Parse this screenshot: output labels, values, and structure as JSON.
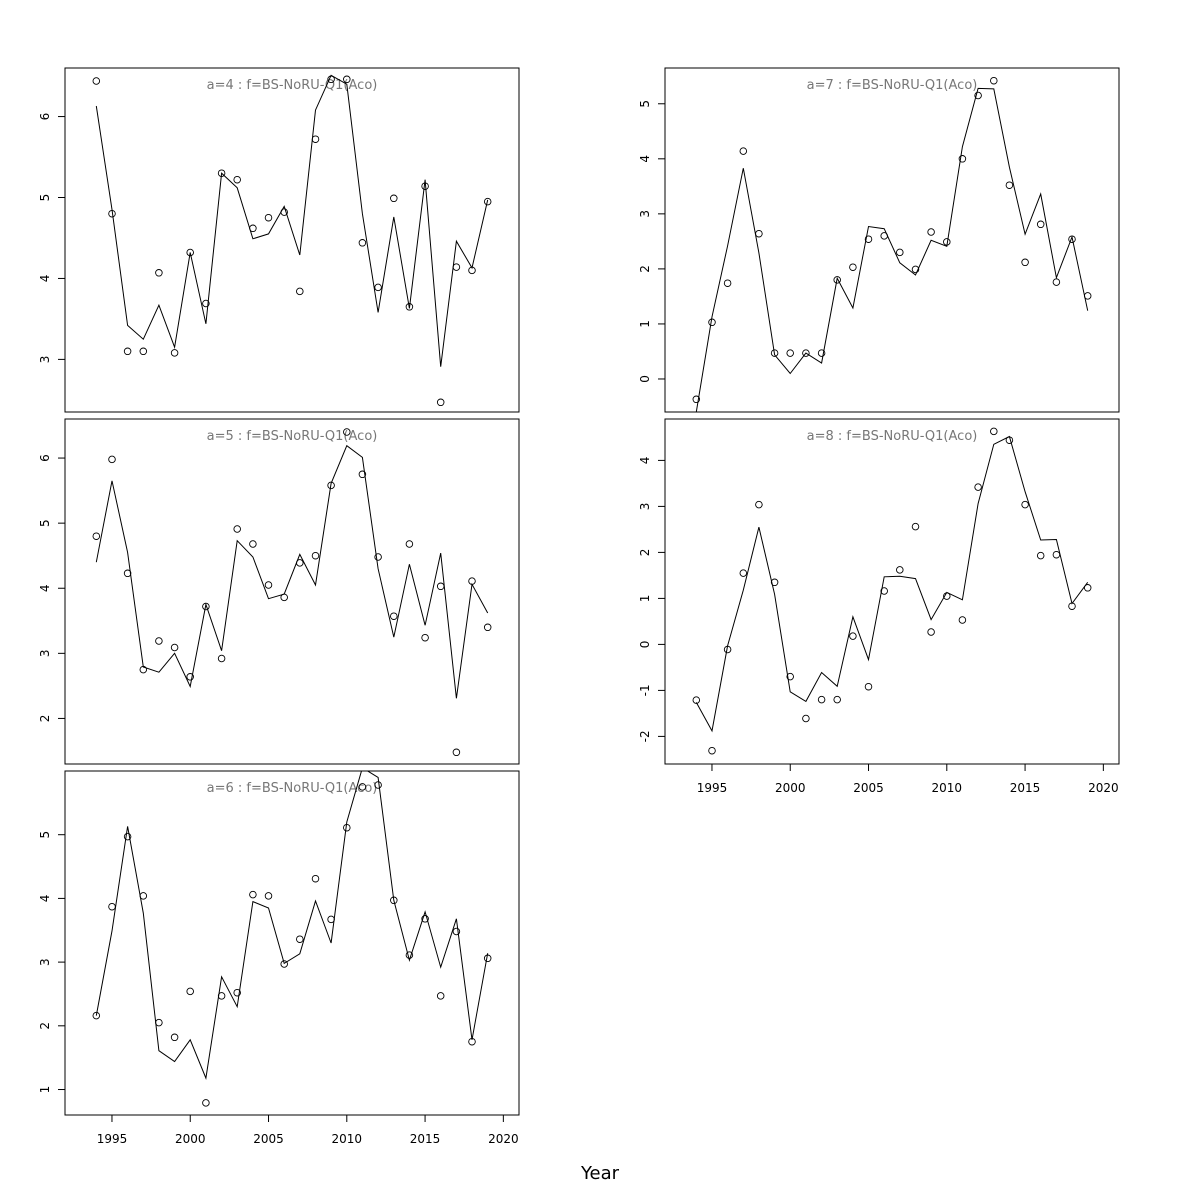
{
  "chart_data": {
    "type": "scatter",
    "xlabel": "Year",
    "xlim": [
      1992,
      2021
    ],
    "xticks": [
      1995,
      2000,
      2005,
      2010,
      2015,
      2020
    ],
    "panels": [
      {
        "title": "a=4  :  f=BS-NoRU-Q1(Aco)",
        "ylim": [
          2.35,
          6.6
        ],
        "yticks": [
          3,
          4,
          5,
          6
        ],
        "show_x_axis": false,
        "series": [
          {
            "type": "scatter",
            "x": [
              1994,
              1995,
              1996,
              1997,
              1998,
              1999,
              2000,
              2001,
              2002,
              2003,
              2004,
              2005,
              2006,
              2007,
              2008,
              2009,
              2010,
              2011,
              2012,
              2013,
              2014,
              2015,
              2016,
              2017,
              2018,
              2019
            ],
            "values": [
              6.44,
              4.8,
              3.1,
              3.1,
              4.07,
              3.08,
              4.32,
              3.69,
              5.3,
              5.22,
              4.62,
              4.75,
              4.82,
              3.84,
              5.72,
              6.46,
              6.46,
              4.44,
              3.89,
              4.99,
              3.65,
              5.14,
              2.47,
              4.14,
              4.1,
              4.95
            ]
          },
          {
            "type": "line",
            "x": [
              1994,
              1995,
              1996,
              1997,
              1998,
              1999,
              2000,
              2001,
              2002,
              2003,
              2004,
              2005,
              2006,
              2007,
              2008,
              2009,
              2010,
              2011,
              2012,
              2013,
              2014,
              2015,
              2016,
              2017,
              2018,
              2019
            ],
            "values": [
              6.13,
              4.85,
              3.42,
              3.25,
              3.67,
              3.15,
              4.32,
              3.44,
              5.3,
              5.12,
              4.49,
              4.55,
              4.89,
              4.29,
              6.08,
              6.51,
              6.4,
              4.8,
              3.58,
              4.76,
              3.63,
              5.22,
              2.91,
              4.46,
              4.13,
              4.97
            ]
          }
        ]
      },
      {
        "title": "a=7  :  f=BS-NoRU-Q1(Aco)",
        "ylim": [
          -0.6,
          5.65
        ],
        "yticks": [
          0,
          1,
          2,
          3,
          4,
          5
        ],
        "show_x_axis": false,
        "series": [
          {
            "type": "scatter",
            "x": [
              1994,
              1995,
              1996,
              1997,
              1998,
              1999,
              2000,
              2001,
              2002,
              2003,
              2004,
              2005,
              2006,
              2007,
              2008,
              2009,
              2010,
              2011,
              2012,
              2013,
              2014,
              2015,
              2016,
              2017,
              2018,
              2019
            ],
            "values": [
              -0.37,
              1.03,
              1.74,
              4.14,
              2.64,
              0.47,
              0.47,
              0.47,
              0.47,
              1.8,
              2.03,
              2.54,
              2.6,
              2.3,
              1.99,
              2.67,
              2.49,
              4.0,
              5.15,
              5.42,
              3.52,
              2.12,
              2.81,
              1.76,
              2.54,
              1.51
            ]
          },
          {
            "type": "line",
            "x": [
              1994,
              1995,
              1996,
              1997,
              1998,
              1999,
              2000,
              2001,
              2002,
              2003,
              2004,
              2005,
              2006,
              2007,
              2008,
              2009,
              2010,
              2011,
              2012,
              2013,
              2014,
              2015,
              2016,
              2017,
              2018,
              2019
            ],
            "values": [
              -0.6,
              1.13,
              2.42,
              3.83,
              2.29,
              0.44,
              0.1,
              0.47,
              0.29,
              1.83,
              1.29,
              2.77,
              2.73,
              2.11,
              1.89,
              2.52,
              2.41,
              4.22,
              5.28,
              5.27,
              3.85,
              2.63,
              3.36,
              1.84,
              2.58,
              1.24
            ]
          }
        ]
      },
      {
        "title": "a=5  :  f=BS-NoRU-Q1(Aco)",
        "ylim": [
          1.3,
          6.6
        ],
        "yticks": [
          2,
          3,
          4,
          5,
          6
        ],
        "show_x_axis": false,
        "series": [
          {
            "type": "scatter",
            "x": [
              1994,
              1995,
              1996,
              1997,
              1998,
              1999,
              2000,
              2001,
              2002,
              2003,
              2004,
              2005,
              2006,
              2007,
              2008,
              2009,
              2010,
              2011,
              2012,
              2013,
              2014,
              2015,
              2016,
              2017,
              2018,
              2019
            ],
            "values": [
              4.8,
              5.98,
              4.23,
              2.75,
              3.19,
              3.09,
              2.64,
              3.72,
              2.92,
              4.91,
              4.68,
              4.05,
              3.86,
              4.39,
              4.5,
              5.58,
              6.4,
              5.75,
              4.48,
              3.57,
              4.68,
              3.24,
              4.03,
              1.48,
              4.11,
              3.4
            ]
          },
          {
            "type": "line",
            "x": [
              1994,
              1995,
              1996,
              1997,
              1998,
              1999,
              2000,
              2001,
              2002,
              2003,
              2004,
              2005,
              2006,
              2007,
              2008,
              2009,
              2010,
              2011,
              2012,
              2013,
              2014,
              2015,
              2016,
              2017,
              2018,
              2019
            ],
            "values": [
              4.4,
              5.65,
              4.55,
              2.79,
              2.71,
              3.0,
              2.49,
              3.75,
              3.04,
              4.73,
              4.48,
              3.84,
              3.91,
              4.52,
              4.05,
              5.61,
              6.19,
              6.01,
              4.3,
              3.25,
              4.37,
              3.43,
              4.54,
              2.31,
              4.06,
              3.62
            ]
          }
        ]
      },
      {
        "title": "a=8  :  f=BS-NoRU-Q1(Aco)",
        "ylim": [
          -2.6,
          4.9
        ],
        "yticks": [
          -2,
          -1,
          0,
          1,
          2,
          3,
          4
        ],
        "show_x_axis": true,
        "series": [
          {
            "type": "scatter",
            "x": [
              1994,
              1995,
              1996,
              1997,
              1998,
              1999,
              2000,
              2001,
              2002,
              2003,
              2004,
              2005,
              2006,
              2007,
              2008,
              2009,
              2010,
              2011,
              2012,
              2013,
              2014,
              2015,
              2016,
              2017,
              2018,
              2019
            ],
            "values": [
              -1.21,
              -2.31,
              -0.11,
              1.55,
              3.04,
              1.35,
              -0.7,
              -1.61,
              -1.2,
              -1.2,
              0.18,
              -0.92,
              1.16,
              1.62,
              2.56,
              0.27,
              1.05,
              0.53,
              3.42,
              4.63,
              4.44,
              3.04,
              1.93,
              1.95,
              0.83,
              1.23
            ]
          },
          {
            "type": "line",
            "x": [
              1994,
              1995,
              1996,
              1997,
              1998,
              1999,
              2000,
              2001,
              2002,
              2003,
              2004,
              2005,
              2006,
              2007,
              2008,
              2009,
              2010,
              2011,
              2012,
              2013,
              2014,
              2015,
              2016,
              2017,
              2018,
              2019
            ],
            "values": [
              -1.26,
              -1.88,
              -0.03,
              1.18,
              2.55,
              1.09,
              -1.03,
              -1.24,
              -0.61,
              -0.91,
              0.6,
              -0.33,
              1.47,
              1.48,
              1.43,
              0.54,
              1.13,
              0.97,
              3.06,
              4.35,
              4.52,
              3.32,
              2.27,
              2.28,
              0.89,
              1.35
            ]
          }
        ]
      },
      {
        "title": "a=6  :  f=BS-NoRU-Q1(Aco)",
        "ylim": [
          0.6,
          6.0
        ],
        "yticks": [
          1,
          2,
          3,
          4,
          5
        ],
        "show_x_axis": true,
        "series": [
          {
            "type": "scatter",
            "x": [
              1994,
              1995,
              1996,
              1997,
              1998,
              1999,
              2000,
              2001,
              2002,
              2003,
              2004,
              2005,
              2006,
              2007,
              2008,
              2009,
              2010,
              2011,
              2012,
              2013,
              2014,
              2015,
              2016,
              2017,
              2018,
              2019
            ],
            "values": [
              2.16,
              3.87,
              4.97,
              4.04,
              2.05,
              1.82,
              2.54,
              0.79,
              2.47,
              2.52,
              4.06,
              4.04,
              2.97,
              3.36,
              4.31,
              3.67,
              5.11,
              5.75,
              5.78,
              3.97,
              3.11,
              3.68,
              2.47,
              3.48,
              1.75,
              3.06
            ]
          },
          {
            "type": "line",
            "x": [
              1994,
              1995,
              1996,
              1997,
              1998,
              1999,
              2000,
              2001,
              2002,
              2003,
              2004,
              2005,
              2006,
              2007,
              2008,
              2009,
              2010,
              2011,
              2012,
              2013,
              2014,
              2015,
              2016,
              2017,
              2018,
              2019
            ],
            "values": [
              2.16,
              3.49,
              5.13,
              3.77,
              1.61,
              1.44,
              1.78,
              1.18,
              2.77,
              2.3,
              3.95,
              3.85,
              2.98,
              3.13,
              3.96,
              3.3,
              5.2,
              6.05,
              5.9,
              3.97,
              3.03,
              3.79,
              2.92,
              3.68,
              1.78,
              3.14
            ]
          }
        ]
      }
    ]
  }
}
